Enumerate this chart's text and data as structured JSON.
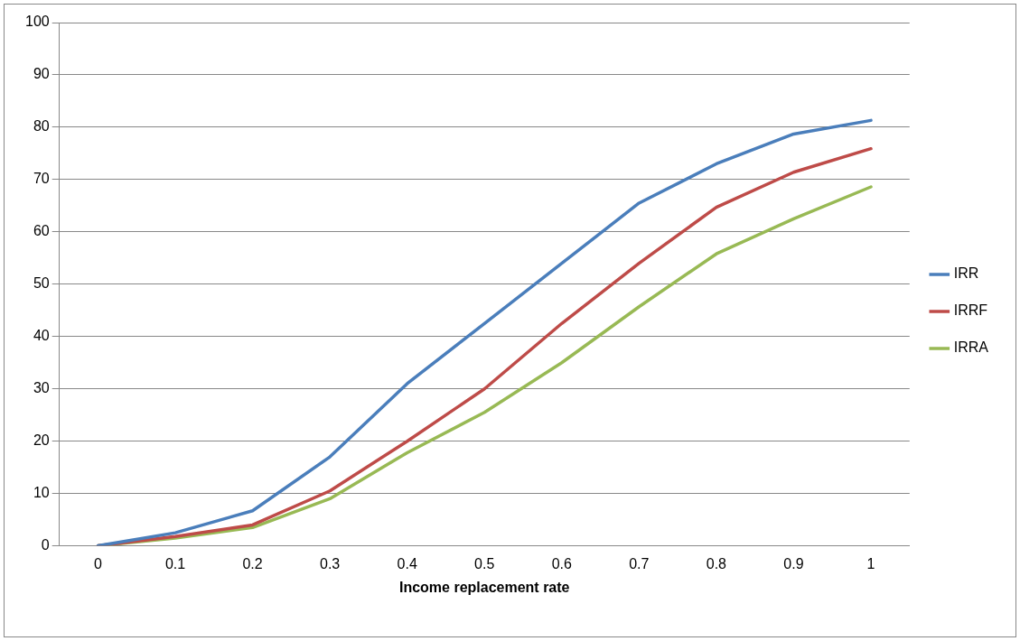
{
  "chart_data": {
    "type": "line",
    "xlabel": "Income replacement rate",
    "categories": [
      "0",
      "0.1",
      "0.2",
      "0.3",
      "0.4",
      "0.5",
      "0.6",
      "0.7",
      "0.8",
      "0.9",
      "1"
    ],
    "series": [
      {
        "name": "IRR",
        "color": "#4a7ebb",
        "values": [
          0,
          2.5,
          6.7,
          17,
          31,
          42.5,
          54,
          65.5,
          73,
          78.7,
          81.3
        ]
      },
      {
        "name": "IRRF",
        "color": "#be4b48",
        "values": [
          0,
          1.8,
          4,
          10.5,
          20,
          30,
          42.5,
          54,
          64.7,
          71.4,
          75.9
        ]
      },
      {
        "name": "IRRA",
        "color": "#98b954",
        "values": [
          0,
          1.5,
          3.5,
          9,
          17.8,
          25.5,
          35,
          45.7,
          55.8,
          62.5,
          68.6
        ]
      }
    ],
    "ylim": [
      0,
      100
    ],
    "yticks": [
      0,
      10,
      20,
      30,
      40,
      50,
      60,
      70,
      80,
      90,
      100
    ],
    "grid": "y",
    "legend": "right",
    "marker": "none",
    "line_style": "solid"
  }
}
